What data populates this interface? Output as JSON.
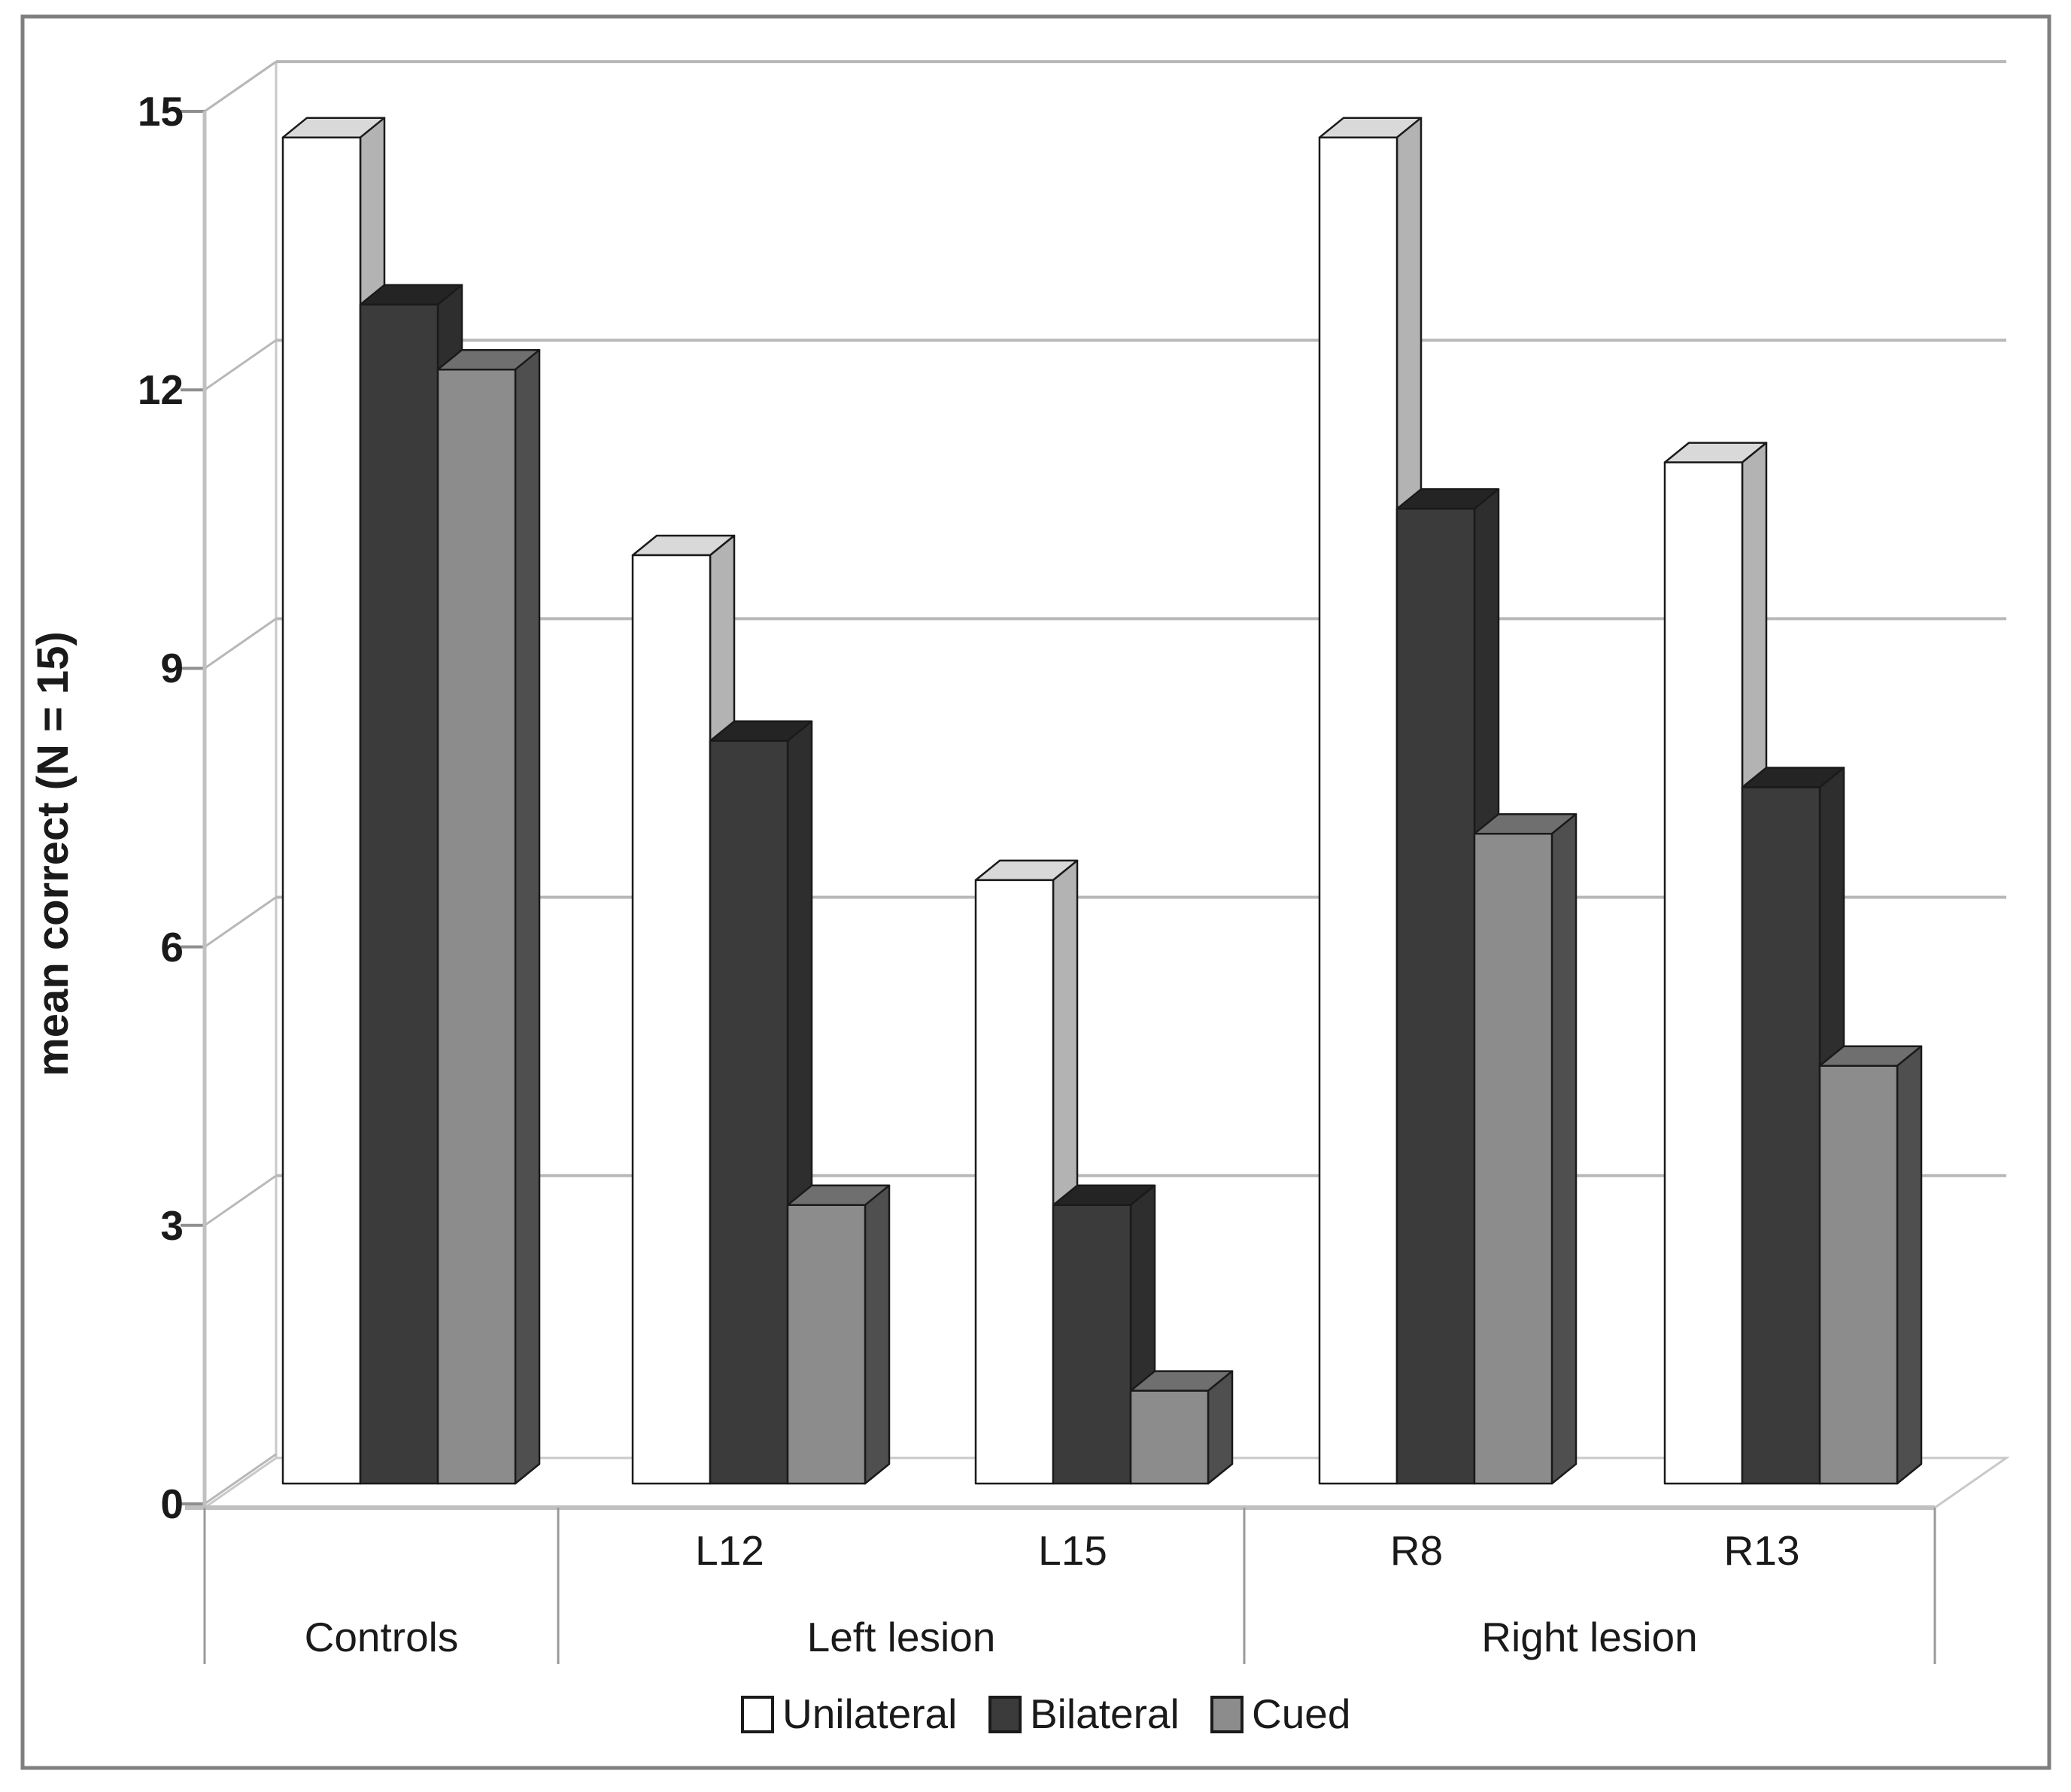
{
  "chart_data": {
    "type": "bar",
    "style": "3d-clustered-column",
    "title": "",
    "xlabel": "",
    "ylabel": "mean correct (N = 15)",
    "ylim": [
      0,
      15
    ],
    "ytick_step": 3,
    "yticks": [
      "0",
      "3",
      "6",
      "9",
      "12",
      "15"
    ],
    "grid": true,
    "legend_position": "bottom",
    "clusters": [
      {
        "id": "",
        "group": "Controls"
      },
      {
        "id": "L12",
        "group": "Left lesion"
      },
      {
        "id": "L15",
        "group": "Left lesion"
      },
      {
        "id": "R8",
        "group": "Right lesion"
      },
      {
        "id": "R13",
        "group": "Right lesion"
      }
    ],
    "group_axis": [
      "Controls",
      "Left lesion",
      "Right lesion"
    ],
    "series": [
      {
        "name": "Unilateral",
        "values": [
          14.5,
          10.0,
          6.5,
          14.5,
          11.0
        ],
        "front": "#ffffff",
        "top": "#d9d9d9",
        "side": "#b3b3b3"
      },
      {
        "name": "Bilateral",
        "values": [
          12.7,
          8.0,
          3.0,
          10.5,
          7.5
        ],
        "front": "#3b3b3b",
        "top": "#242424",
        "side": "#2e2e2e"
      },
      {
        "name": "Cued",
        "values": [
          12.0,
          3.0,
          1.0,
          7.0,
          4.5
        ],
        "front": "#8c8c8c",
        "top": "#6f6f6f",
        "side": "#4f4f4f"
      }
    ],
    "colors": {
      "gridline": "#b8b8b8",
      "axis": "#c0c0c0",
      "tick": "#8f8f8f",
      "band_line": "#9a9a9a",
      "bar_outline": "#1a1a1a",
      "figure_border": "#7f7f7f",
      "background": "#ffffff",
      "text": "#1a1a1a"
    }
  }
}
